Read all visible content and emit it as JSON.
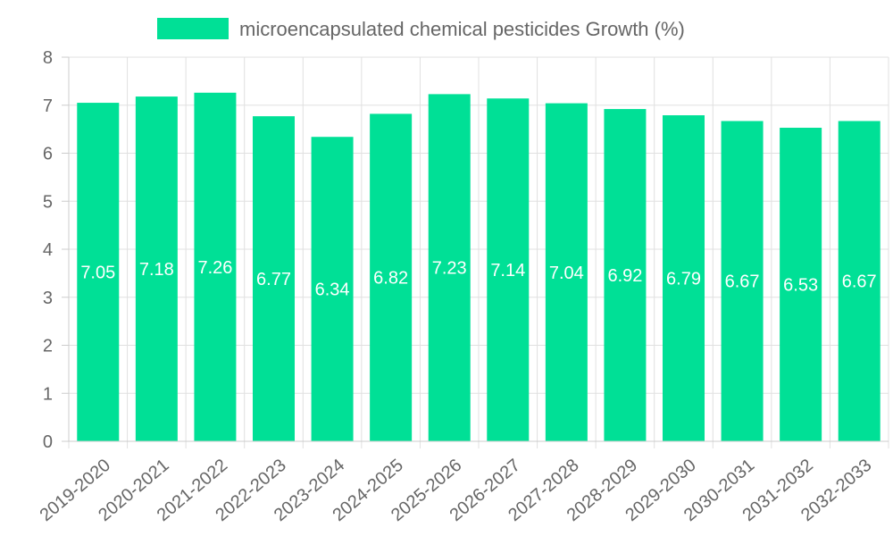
{
  "chart_data": {
    "type": "bar",
    "title": "",
    "xlabel": "",
    "ylabel": "",
    "ylim": [
      0,
      8
    ],
    "yticks": [
      "0",
      "1",
      "2",
      "3",
      "4",
      "5",
      "6",
      "7",
      "8"
    ],
    "grid": true,
    "legend_position": "top-center",
    "categories": [
      "2019-2020",
      "2020-2021",
      "2021-2022",
      "2022-2023",
      "2023-2024",
      "2024-2025",
      "2025-2026",
      "2026-2027",
      "2027-2028",
      "2028-2029",
      "2029-2030",
      "2030-2031",
      "2031-2032",
      "2032-2033"
    ],
    "series": [
      {
        "name": "microencapsulated chemical pesticides Growth (%)",
        "color": "#00e096",
        "values": [
          7.05,
          7.18,
          7.26,
          6.77,
          6.34,
          6.82,
          7.23,
          7.14,
          7.04,
          6.92,
          6.79,
          6.67,
          6.53,
          6.67
        ],
        "labels": [
          "7.05",
          "7.18",
          "7.26",
          "6.77",
          "6.34",
          "6.82",
          "7.23",
          "7.14",
          "7.04",
          "6.92",
          "6.79",
          "6.67",
          "6.53",
          "6.67"
        ]
      }
    ]
  }
}
